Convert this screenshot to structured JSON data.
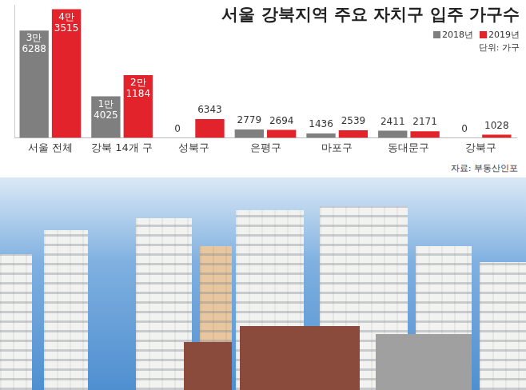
{
  "chart_data": {
    "type": "bar",
    "title": "서울 강북지역 주요 자치구 입주 가구수",
    "subtitle": "단위: 가구",
    "source": "자료: 부동산인포",
    "categories": [
      "서울 전체",
      "강북 14개 구",
      "성북구",
      "은평구",
      "마포구",
      "동대문구",
      "강북구"
    ],
    "series": [
      {
        "name": "2018년",
        "color": "#7f7f7f",
        "values": [
          36288,
          14025,
          0,
          2779,
          1436,
          2411,
          0
        ],
        "value_labels": [
          "3만 6288",
          "1만 4025",
          "0",
          "2779",
          "1436",
          "2411",
          "0"
        ]
      },
      {
        "name": "2019년",
        "color": "#e3232b",
        "values": [
          43515,
          21184,
          6343,
          2694,
          2539,
          2171,
          1028
        ],
        "value_labels": [
          "4만 3515",
          "2만 1184",
          "6343",
          "2694",
          "2539",
          "2171",
          "1028"
        ]
      }
    ],
    "ylim": [
      0,
      45000
    ],
    "grid": false,
    "legend": "top-right",
    "data_labels": true,
    "tick_labels": "x"
  }
}
